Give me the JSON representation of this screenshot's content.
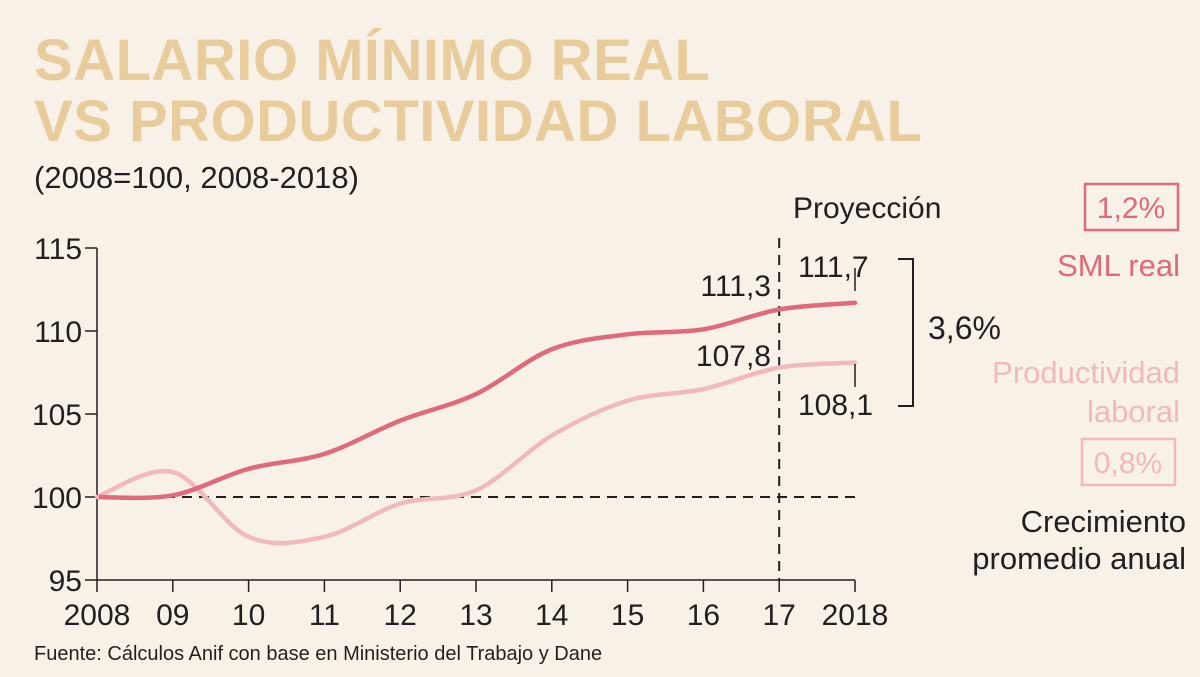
{
  "header": {
    "title_line1": "SALARIO MÍNIMO REAL",
    "title_line2": "VS PRODUCTIVIDAD LABORAL",
    "subtitle": "(2008=100, 2008-2018)"
  },
  "footer": {
    "source": "Fuente: Cálculos Anif con base en Ministerio del Trabajo y Dane"
  },
  "colors": {
    "sml": "#e06a7a",
    "prod": "#f2b9bd",
    "title": "#e9cc9c",
    "background": "#f7f1e7",
    "text": "#231f20"
  },
  "chart_data": {
    "type": "line",
    "title": "SALARIO MÍNIMO REAL VS PRODUCTIVIDAD LABORAL",
    "subtitle": "(2008=100, 2008-2018)",
    "x_tick_labels": [
      "2008",
      "09",
      "10",
      "11",
      "12",
      "13",
      "14",
      "15",
      "16",
      "17",
      "2018"
    ],
    "x": [
      2008,
      2009,
      2010,
      2011,
      2012,
      2013,
      2014,
      2015,
      2016,
      2017,
      2018
    ],
    "xlim": [
      2008,
      2018
    ],
    "ylim": [
      95,
      115
    ],
    "yticks": [
      95,
      100,
      105,
      110,
      115
    ],
    "baseline": 100,
    "projection_start": 2017,
    "projection_label": "Proyección",
    "series": [
      {
        "name": "SML real",
        "values": [
          100,
          100.1,
          101.7,
          102.6,
          104.6,
          106.2,
          108.9,
          109.8,
          110.1,
          111.3,
          111.7
        ]
      },
      {
        "name": "Productividad laboral",
        "values": [
          100,
          101.5,
          97.6,
          97.6,
          99.6,
          100.4,
          103.7,
          105.8,
          106.5,
          107.8,
          108.1
        ]
      }
    ],
    "annotations": {
      "sml_2017": "111,3",
      "sml_2018": "111,7",
      "prod_2017": "107,8",
      "prod_2018": "108,1",
      "gap": "3,6%"
    },
    "legend": {
      "sml_rate": "1,2%",
      "sml_label": "SML real",
      "prod_label_line1": "Productividad",
      "prod_label_line2": "laboral",
      "prod_rate": "0,8%",
      "note_line1": "Crecimiento",
      "note_line2": "promedio anual"
    }
  }
}
